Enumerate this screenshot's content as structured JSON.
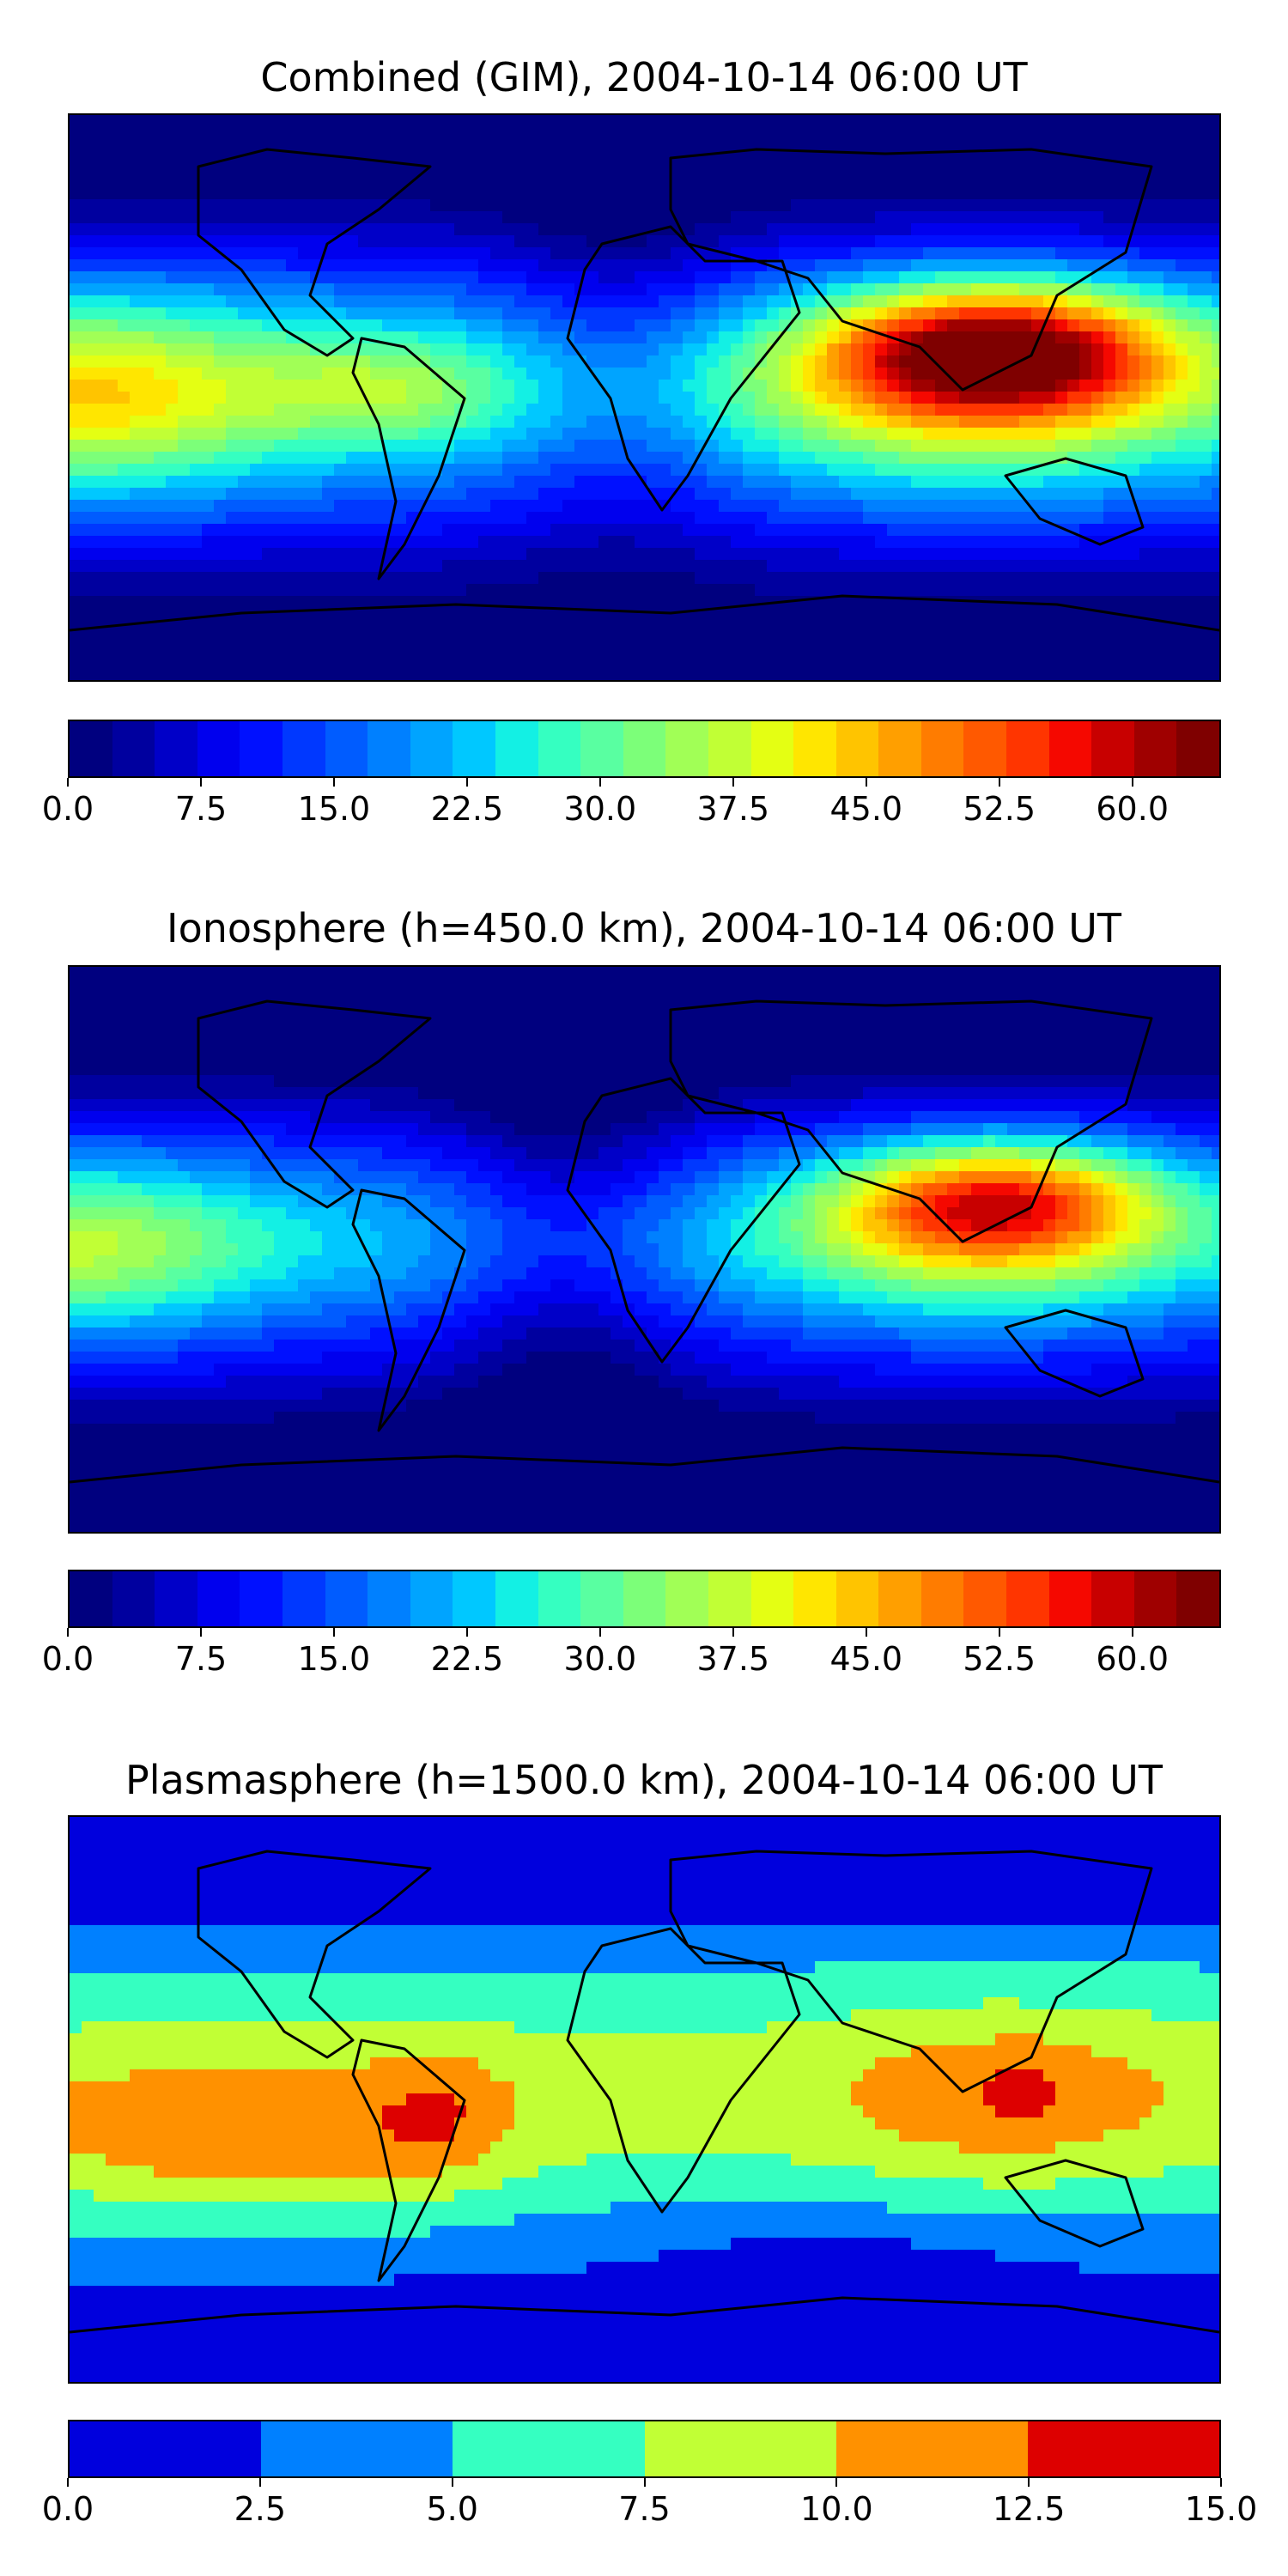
{
  "panels": [
    {
      "title": "Combined (GIM), 2004-10-14 06:00 UT",
      "field": "combined",
      "colorbar": {
        "colors": [
          "#00007f",
          "#00009f",
          "#0000c8",
          "#0000ee",
          "#0010ff",
          "#0038ff",
          "#005cff",
          "#0080ff",
          "#00a4ff",
          "#00c8ff",
          "#13f0e4",
          "#35ffc1",
          "#59ffa1",
          "#7cff79",
          "#a1ff56",
          "#c1ff35",
          "#e4ff13",
          "#ffe600",
          "#ffc400",
          "#ff9f00",
          "#ff7c00",
          "#ff5900",
          "#ff3500",
          "#f50800",
          "#c80000",
          "#9f0000",
          "#7f0000"
        ],
        "min": 0.0,
        "max": 65.0,
        "ticks": [
          "0.0",
          "7.5",
          "15.0",
          "22.5",
          "30.0",
          "37.5",
          "45.0",
          "52.5",
          "60.0"
        ],
        "tick_values": [
          0.0,
          7.5,
          15.0,
          22.5,
          30.0,
          37.5,
          45.0,
          52.5,
          60.0
        ]
      }
    },
    {
      "title": "Ionosphere  (h=450.0 km), 2004-10-14 06:00 UT",
      "field": "ionosphere",
      "colorbar": {
        "colors": [
          "#00007f",
          "#00009f",
          "#0000c8",
          "#0000ee",
          "#0010ff",
          "#0038ff",
          "#005cff",
          "#0080ff",
          "#00a4ff",
          "#00c8ff",
          "#13f0e4",
          "#35ffc1",
          "#59ffa1",
          "#7cff79",
          "#a1ff56",
          "#c1ff35",
          "#e4ff13",
          "#ffe600",
          "#ffc400",
          "#ff9f00",
          "#ff7c00",
          "#ff5900",
          "#ff3500",
          "#f50800",
          "#c80000",
          "#9f0000",
          "#7f0000"
        ],
        "min": 0.0,
        "max": 65.0,
        "ticks": [
          "0.0",
          "7.5",
          "15.0",
          "22.5",
          "30.0",
          "37.5",
          "45.0",
          "52.5",
          "60.0"
        ],
        "tick_values": [
          0.0,
          7.5,
          15.0,
          22.5,
          30.0,
          37.5,
          45.0,
          52.5,
          60.0
        ]
      }
    },
    {
      "title": "Plasmasphere (h=1500.0 km), 2004-10-14 06:00 UT",
      "field": "plasmasphere",
      "colorbar": {
        "colors": [
          "#0000dd",
          "#0080ff",
          "#35ffc1",
          "#c1ff35",
          "#ff9100",
          "#dd0000"
        ],
        "min": 0.0,
        "max": 15.0,
        "ticks": [
          "0.0",
          "2.5",
          "5.0",
          "7.5",
          "10.0",
          "12.5",
          "15.0"
        ],
        "tick_values": [
          0.0,
          2.5,
          5.0,
          7.5,
          10.0,
          12.5,
          15.0
        ]
      }
    }
  ],
  "chart_data": [
    {
      "type": "heatmap",
      "title": "Combined (GIM), 2004-10-14 06:00 UT",
      "projection": "equirectangular world map with coastlines",
      "colormap": "jet",
      "color_range": [
        0.0,
        65.0
      ],
      "peak_region": "South / Southeast Asia",
      "peak_value_approx": 60
    },
    {
      "type": "heatmap",
      "title": "Ionosphere  (h=450.0 km), 2004-10-14 06:00 UT",
      "projection": "equirectangular world map with coastlines",
      "colormap": "jet",
      "color_range": [
        0.0,
        65.0
      ],
      "peak_region": "South / Southeast Asia",
      "peak_value_approx": 52
    },
    {
      "type": "heatmap",
      "title": "Plasmasphere (h=1500.0 km), 2004-10-14 06:00 UT",
      "projection": "equirectangular world map with coastlines",
      "colormap": "jet (6 levels)",
      "color_range": [
        0.0,
        15.0
      ],
      "peak_region": "Southeast Asia",
      "peak_value_approx": 13
    }
  ]
}
